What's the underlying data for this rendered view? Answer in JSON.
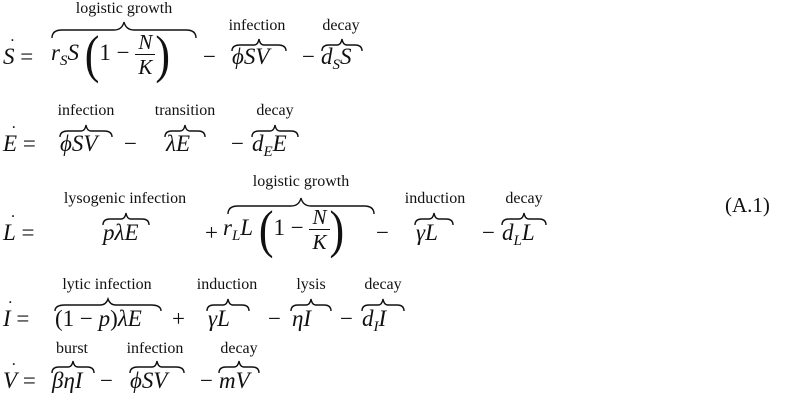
{
  "equation_number": "(A.1)",
  "labels": {
    "logistic_growth": "logistic growth",
    "infection": "infection",
    "decay": "decay",
    "transition": "transition",
    "lysogenic_infection": "lysogenic infection",
    "induction": "induction",
    "lytic_infection": "lytic infection",
    "lysis": "lysis",
    "burst": "burst"
  }
}
